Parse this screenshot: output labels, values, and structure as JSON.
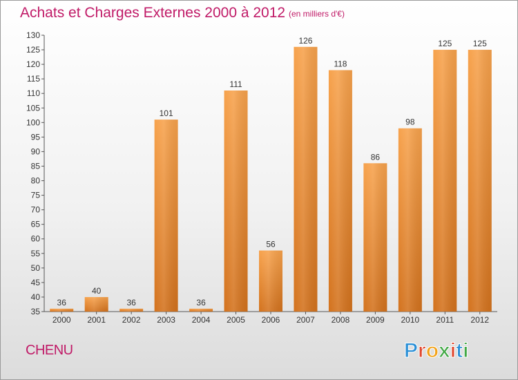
{
  "header": {
    "title": "Achats et Charges Externes 2000 à 2012",
    "unit": "(en milliers d'€)"
  },
  "footer": {
    "city": "CHENU",
    "logo_text": "Proxiti"
  },
  "colors": {
    "title": "#c01a67",
    "bar_light": "#f7a24c",
    "bar_dark": "#d3721d",
    "logo_letters": [
      "#2a8fd6",
      "#e0452c",
      "#f2a31b",
      "#41a845",
      "#e0452c",
      "#2a8fd6",
      "#41a845"
    ]
  },
  "chart_data": {
    "type": "bar",
    "title": "Achats et Charges Externes 2000 à 2012",
    "subtitle": "(en milliers d'€)",
    "categories": [
      "2000",
      "2001",
      "2002",
      "2003",
      "2004",
      "2005",
      "2006",
      "2007",
      "2008",
      "2009",
      "2010",
      "2011",
      "2012"
    ],
    "values": [
      36,
      40,
      36,
      101,
      36,
      111,
      56,
      126,
      118,
      86,
      98,
      125,
      125
    ],
    "ylim": [
      35,
      130
    ],
    "yticks": [
      35,
      40,
      45,
      50,
      55,
      60,
      65,
      70,
      75,
      80,
      85,
      90,
      95,
      100,
      105,
      110,
      115,
      120,
      125,
      130
    ],
    "xlabel": "",
    "ylabel": "",
    "grid": false,
    "legend": "none"
  }
}
